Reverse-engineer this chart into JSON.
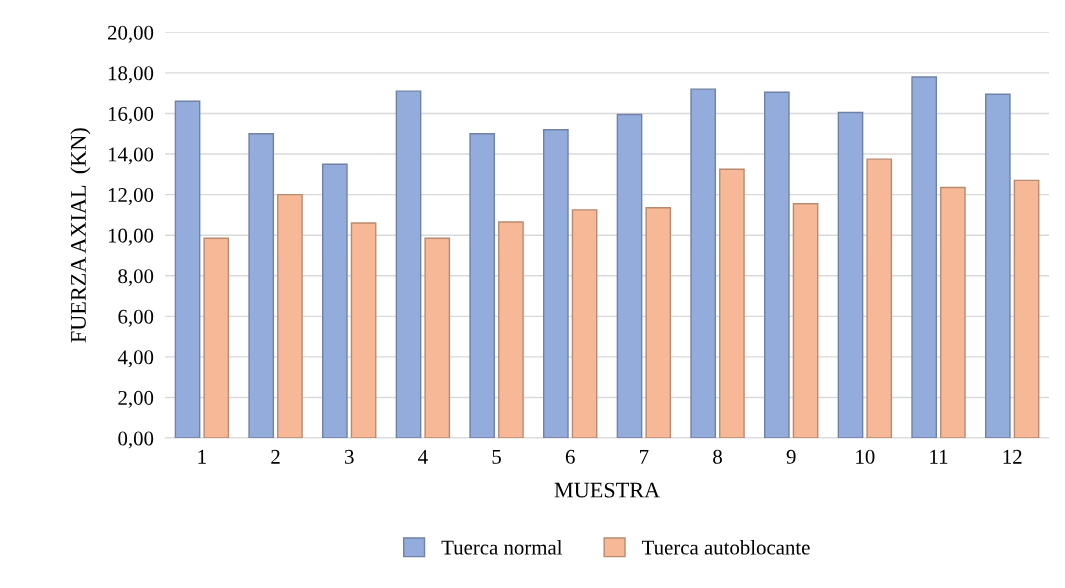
{
  "chart_data": {
    "type": "bar",
    "xlabel": "MUESTRA",
    "ylabel": "FUERZA AXIAL  (KN)",
    "categories": [
      "1",
      "2",
      "3",
      "4",
      "5",
      "6",
      "7",
      "8",
      "9",
      "10",
      "11",
      "12"
    ],
    "series": [
      {
        "name": "Tuerca normal",
        "color": "#94acdc",
        "values": [
          16.6,
          15.0,
          13.5,
          17.1,
          15.0,
          15.2,
          15.95,
          17.2,
          17.05,
          16.05,
          17.8,
          16.95
        ]
      },
      {
        "name": "Tuerca autoblocante",
        "color": "#f6b896",
        "values": [
          9.85,
          12.0,
          10.6,
          9.85,
          10.65,
          11.25,
          11.35,
          13.25,
          11.55,
          13.75,
          12.35,
          12.7
        ]
      }
    ],
    "ylim": [
      0,
      20
    ],
    "yticks": [
      {
        "value": 0,
        "label": "0,00"
      },
      {
        "value": 2,
        "label": "2,00"
      },
      {
        "value": 4,
        "label": "4,00"
      },
      {
        "value": 6,
        "label": "6,00"
      },
      {
        "value": 8,
        "label": "8,00"
      },
      {
        "value": 10,
        "label": "10,00"
      },
      {
        "value": 12,
        "label": "12,00"
      },
      {
        "value": 14,
        "label": "14,00"
      },
      {
        "value": 16,
        "label": "16,00"
      },
      {
        "value": 18,
        "label": "18,00"
      },
      {
        "value": 20,
        "label": "20,00"
      }
    ],
    "grid": "y",
    "legend": "bottom"
  }
}
